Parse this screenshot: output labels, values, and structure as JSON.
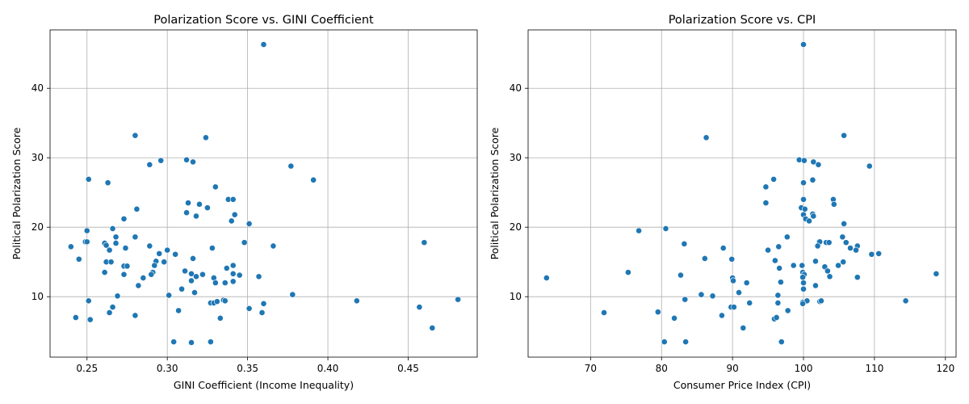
{
  "colors": {
    "point": "#1f77b4",
    "grid": "#b0b0b0",
    "axis": "#000000"
  },
  "chart_data": [
    {
      "type": "scatter",
      "title": "Polarization Score vs. GINI Coefficient",
      "xlabel": "GINI Coefficient (Income Inequality)",
      "ylabel": "Political Polarization Score",
      "xlim": [
        0.227,
        0.493
      ],
      "ylim": [
        1.3,
        48.4
      ],
      "xticks": [
        0.25,
        0.3,
        0.35,
        0.4,
        0.45
      ],
      "xtick_labels": [
        "0.25",
        "0.30",
        "0.35",
        "0.40",
        "0.45"
      ],
      "yticks": [
        10,
        20,
        30,
        40
      ],
      "ytick_labels": [
        "10",
        "20",
        "30",
        "40"
      ],
      "grid": true,
      "points": [
        [
          0.36,
          46.3
        ],
        [
          0.28,
          33.2
        ],
        [
          0.324,
          32.9
        ],
        [
          0.312,
          29.7
        ],
        [
          0.296,
          29.6
        ],
        [
          0.316,
          29.4
        ],
        [
          0.289,
          29.0
        ],
        [
          0.377,
          28.8
        ],
        [
          0.251,
          26.9
        ],
        [
          0.391,
          26.8
        ],
        [
          0.263,
          26.4
        ],
        [
          0.33,
          25.8
        ],
        [
          0.338,
          24.0
        ],
        [
          0.341,
          24.0
        ],
        [
          0.313,
          23.5
        ],
        [
          0.32,
          23.3
        ],
        [
          0.325,
          22.8
        ],
        [
          0.281,
          22.6
        ],
        [
          0.312,
          22.1
        ],
        [
          0.342,
          21.8
        ],
        [
          0.318,
          21.6
        ],
        [
          0.273,
          21.2
        ],
        [
          0.34,
          20.9
        ],
        [
          0.351,
          20.5
        ],
        [
          0.266,
          19.8
        ],
        [
          0.25,
          19.5
        ],
        [
          0.28,
          18.6
        ],
        [
          0.268,
          18.6
        ],
        [
          0.249,
          17.9
        ],
        [
          0.25,
          17.9
        ],
        [
          0.261,
          17.7
        ],
        [
          0.268,
          17.7
        ],
        [
          0.262,
          17.4
        ],
        [
          0.289,
          17.3
        ],
        [
          0.348,
          17.8
        ],
        [
          0.46,
          17.8
        ],
        [
          0.24,
          17.2
        ],
        [
          0.274,
          17.0
        ],
        [
          0.328,
          17.0
        ],
        [
          0.366,
          17.3
        ],
        [
          0.264,
          16.7
        ],
        [
          0.3,
          16.7
        ],
        [
          0.295,
          16.2
        ],
        [
          0.305,
          16.1
        ],
        [
          0.316,
          15.5
        ],
        [
          0.245,
          15.4
        ],
        [
          0.293,
          15.1
        ],
        [
          0.298,
          15.0
        ],
        [
          0.262,
          15.0
        ],
        [
          0.265,
          15.0
        ],
        [
          0.292,
          14.5
        ],
        [
          0.273,
          14.4
        ],
        [
          0.275,
          14.4
        ],
        [
          0.341,
          14.5
        ],
        [
          0.337,
          14.1
        ],
        [
          0.311,
          13.7
        ],
        [
          0.291,
          13.5
        ],
        [
          0.29,
          13.2
        ],
        [
          0.273,
          13.2
        ],
        [
          0.261,
          13.5
        ],
        [
          0.315,
          13.3
        ],
        [
          0.322,
          13.2
        ],
        [
          0.341,
          13.3
        ],
        [
          0.345,
          13.1
        ],
        [
          0.357,
          12.9
        ],
        [
          0.285,
          12.7
        ],
        [
          0.318,
          12.9
        ],
        [
          0.329,
          12.7
        ],
        [
          0.315,
          12.3
        ],
        [
          0.33,
          12.0
        ],
        [
          0.336,
          12.0
        ],
        [
          0.341,
          12.2
        ],
        [
          0.282,
          11.6
        ],
        [
          0.309,
          11.1
        ],
        [
          0.317,
          10.6
        ],
        [
          0.301,
          10.2
        ],
        [
          0.269,
          10.1
        ],
        [
          0.378,
          10.3
        ],
        [
          0.481,
          9.6
        ],
        [
          0.418,
          9.4
        ],
        [
          0.251,
          9.4
        ],
        [
          0.327,
          9.1
        ],
        [
          0.329,
          9.1
        ],
        [
          0.331,
          9.3
        ],
        [
          0.335,
          9.5
        ],
        [
          0.336,
          9.4
        ],
        [
          0.36,
          9.0
        ],
        [
          0.266,
          8.5
        ],
        [
          0.351,
          8.3
        ],
        [
          0.457,
          8.5
        ],
        [
          0.307,
          8.0
        ],
        [
          0.264,
          7.7
        ],
        [
          0.28,
          7.3
        ],
        [
          0.359,
          7.7
        ],
        [
          0.243,
          7.0
        ],
        [
          0.252,
          6.7
        ],
        [
          0.333,
          6.9
        ],
        [
          0.465,
          5.5
        ],
        [
          0.304,
          3.5
        ],
        [
          0.315,
          3.4
        ],
        [
          0.327,
          3.5
        ]
      ]
    },
    {
      "type": "scatter",
      "title": "Polarization Score vs. CPI",
      "xlabel": "Consumer Price Index (CPI)",
      "ylabel": "Political Polarization Score",
      "xlim": [
        61.2,
        121.5
      ],
      "ylim": [
        1.3,
        48.4
      ],
      "xticks": [
        70,
        80,
        90,
        100,
        110,
        120
      ],
      "xtick_labels": [
        "70",
        "80",
        "90",
        "100",
        "110",
        "120"
      ],
      "yticks": [
        10,
        20,
        30,
        40
      ],
      "ytick_labels": [
        "10",
        "20",
        "30",
        "40"
      ],
      "grid": true,
      "points": [
        [
          100.0,
          46.3
        ],
        [
          105.7,
          33.2
        ],
        [
          86.3,
          32.9
        ],
        [
          99.4,
          29.7
        ],
        [
          100.1,
          29.6
        ],
        [
          101.4,
          29.4
        ],
        [
          102.1,
          29.0
        ],
        [
          109.3,
          28.8
        ],
        [
          95.8,
          26.9
        ],
        [
          101.3,
          26.8
        ],
        [
          100.0,
          26.4
        ],
        [
          94.7,
          25.8
        ],
        [
          100.0,
          24.0
        ],
        [
          104.2,
          24.0
        ],
        [
          94.7,
          23.5
        ],
        [
          104.3,
          23.3
        ],
        [
          99.7,
          22.8
        ],
        [
          100.2,
          22.6
        ],
        [
          101.3,
          21.9
        ],
        [
          100.0,
          21.8
        ],
        [
          101.4,
          21.6
        ],
        [
          100.3,
          21.2
        ],
        [
          100.8,
          20.9
        ],
        [
          105.7,
          20.5
        ],
        [
          80.6,
          19.8
        ],
        [
          76.8,
          19.5
        ],
        [
          97.7,
          18.6
        ],
        [
          105.5,
          18.6
        ],
        [
          102.2,
          17.9
        ],
        [
          102.3,
          17.9
        ],
        [
          103.2,
          17.8
        ],
        [
          103.6,
          17.8
        ],
        [
          106.0,
          17.8
        ],
        [
          107.6,
          17.3
        ],
        [
          102.0,
          17.3
        ],
        [
          83.2,
          17.6
        ],
        [
          88.7,
          17.0
        ],
        [
          96.5,
          17.2
        ],
        [
          106.6,
          17.0
        ],
        [
          107.4,
          16.7
        ],
        [
          95.0,
          16.7
        ],
        [
          110.6,
          16.2
        ],
        [
          109.6,
          16.1
        ],
        [
          86.1,
          15.5
        ],
        [
          89.9,
          15.4
        ],
        [
          101.7,
          15.1
        ],
        [
          105.6,
          15.0
        ],
        [
          104.9,
          14.5
        ],
        [
          96.0,
          15.2
        ],
        [
          98.6,
          14.5
        ],
        [
          99.8,
          14.5
        ],
        [
          103.0,
          14.3
        ],
        [
          96.6,
          14.1
        ],
        [
          103.4,
          13.7
        ],
        [
          99.9,
          13.5
        ],
        [
          100.1,
          13.2
        ],
        [
          75.3,
          13.5
        ],
        [
          118.7,
          13.3
        ],
        [
          82.7,
          13.1
        ],
        [
          103.7,
          12.9
        ],
        [
          99.9,
          12.8
        ],
        [
          107.6,
          12.8
        ],
        [
          63.8,
          12.7
        ],
        [
          90.0,
          12.7
        ],
        [
          90.1,
          12.3
        ],
        [
          96.8,
          12.1
        ],
        [
          92.0,
          12.0
        ],
        [
          100.0,
          12.0
        ],
        [
          101.7,
          11.6
        ],
        [
          100.0,
          11.1
        ],
        [
          90.9,
          10.6
        ],
        [
          96.4,
          10.2
        ],
        [
          85.6,
          10.3
        ],
        [
          87.2,
          10.1
        ],
        [
          83.3,
          9.6
        ],
        [
          99.9,
          9.2
        ],
        [
          102.3,
          9.3
        ],
        [
          102.5,
          9.4
        ],
        [
          100.5,
          9.4
        ],
        [
          114.4,
          9.4
        ],
        [
          92.4,
          9.1
        ],
        [
          96.4,
          9.1
        ],
        [
          99.9,
          9.0
        ],
        [
          89.8,
          8.5
        ],
        [
          90.2,
          8.5
        ],
        [
          79.5,
          7.8
        ],
        [
          71.9,
          7.7
        ],
        [
          97.8,
          8.0
        ],
        [
          88.5,
          7.3
        ],
        [
          81.8,
          6.9
        ],
        [
          95.9,
          6.8
        ],
        [
          96.2,
          7.0
        ],
        [
          91.5,
          5.5
        ],
        [
          80.4,
          3.5
        ],
        [
          83.4,
          3.5
        ],
        [
          96.9,
          3.5
        ]
      ]
    }
  ]
}
